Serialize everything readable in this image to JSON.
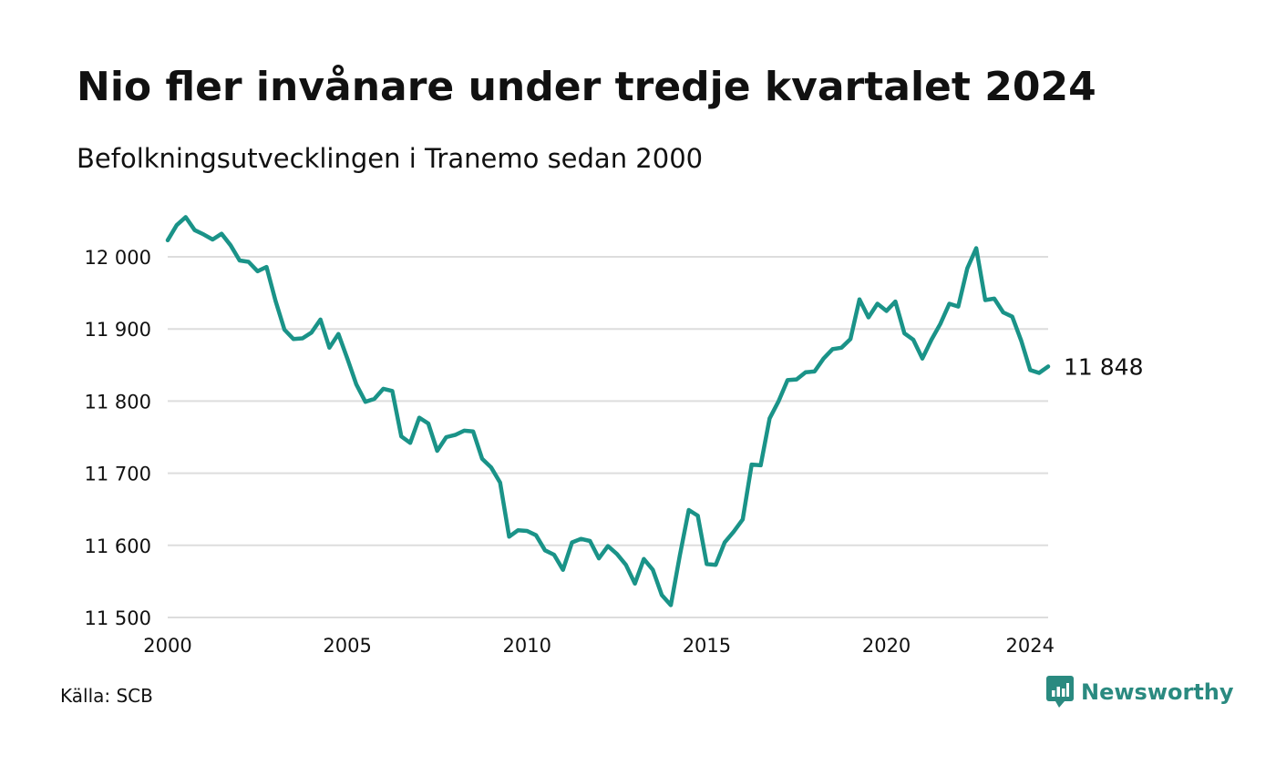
{
  "title": "Nio fler invånare under tredje kvartalet 2024",
  "subtitle": "Befolkningsutvecklingen i Tranemo sedan 2000",
  "source": "Källa: SCB",
  "brand": {
    "name": "Newsworthy",
    "icon": "newsworthy-logo-icon",
    "color": "#2a8a80"
  },
  "chart_data": {
    "type": "line",
    "title": "Nio fler invånare under tredje kvartalet 2024",
    "subtitle": "Befolkningsutvecklingen i Tranemo sedan 2000",
    "xlabel": "",
    "ylabel": "",
    "x_ticks": [
      2000,
      2005,
      2010,
      2015,
      2020,
      2024
    ],
    "x_tick_labels": [
      "2000",
      "2005",
      "2010",
      "2015",
      "2020",
      "2024"
    ],
    "y_ticks": [
      11500,
      11600,
      11700,
      11800,
      11900,
      12000
    ],
    "y_tick_labels": [
      "11 500",
      "11 600",
      "11 700",
      "11 800",
      "11 900",
      "12 000"
    ],
    "xlim": [
      2000,
      2024.5
    ],
    "ylim": [
      11500,
      12000
    ],
    "grid": "horizontal",
    "line_color": "#1a9388",
    "end_label": "11 848",
    "series": [
      {
        "x": [
          2000.0,
          2000.25,
          2000.5,
          2000.75,
          2001.0,
          2001.25,
          2001.5,
          2001.75,
          2002.0,
          2002.25,
          2002.5,
          2002.75,
          2003.0,
          2003.25,
          2003.5,
          2003.75,
          2004.0,
          2004.25,
          2004.5,
          2004.75,
          2005.0,
          2005.25,
          2005.5,
          2005.75,
          2006.0,
          2006.25,
          2006.5,
          2006.75,
          2007.0,
          2007.25,
          2007.5,
          2007.75,
          2008.0,
          2008.25,
          2008.5,
          2008.75,
          2009.0,
          2009.25,
          2009.5,
          2009.75,
          2010.0,
          2010.25,
          2010.5,
          2010.75,
          2011.0,
          2011.25,
          2011.5,
          2011.75,
          2012.0,
          2012.25,
          2012.5,
          2012.75,
          2013.0,
          2013.25,
          2013.5,
          2013.75,
          2014.0,
          2014.25,
          2014.5,
          2014.75,
          2015.0,
          2015.25,
          2015.5,
          2015.75,
          2016.0,
          2016.25,
          2016.5,
          2016.75,
          2017.0,
          2017.25,
          2017.5,
          2017.75,
          2018.0,
          2018.25,
          2018.5,
          2018.75,
          2019.0,
          2019.25,
          2019.5,
          2019.75,
          2020.0,
          2020.25,
          2020.5,
          2020.75,
          2021.0,
          2021.25,
          2021.5,
          2021.75,
          2022.0,
          2022.25,
          2022.5,
          2022.75,
          2023.0,
          2023.25,
          2023.5,
          2023.75,
          2024.0,
          2024.25,
          2024.5
        ],
        "values": [
          12023,
          12044,
          12055,
          12037,
          12031,
          12024,
          12032,
          12016,
          11995,
          11993,
          11980,
          11986,
          11939,
          11899,
          11886,
          11887,
          11895,
          11913,
          11874,
          11893,
          11859,
          11823,
          11799,
          11803,
          11817,
          11814,
          11751,
          11742,
          11777,
          11769,
          11731,
          11750,
          11753,
          11759,
          11758,
          11720,
          11708,
          11687,
          11612,
          11621,
          11620,
          11614,
          11593,
          11587,
          11566,
          11604,
          11609,
          11606,
          11582,
          11599,
          11588,
          11573,
          11547,
          11581,
          11566,
          11531,
          11517,
          11586,
          11649,
          11641,
          11574,
          11573,
          11604,
          11619,
          11636,
          11712,
          11711,
          11776,
          11800,
          11829,
          11830,
          11840,
          11841,
          11859,
          11872,
          11874,
          11886,
          11941,
          11916,
          11935,
          11925,
          11938,
          11894,
          11885,
          11859,
          11885,
          11907,
          11935,
          11931,
          11984,
          12012,
          11940,
          11942,
          11923,
          11917,
          11884,
          11843,
          11839,
          11848
        ]
      }
    ]
  }
}
